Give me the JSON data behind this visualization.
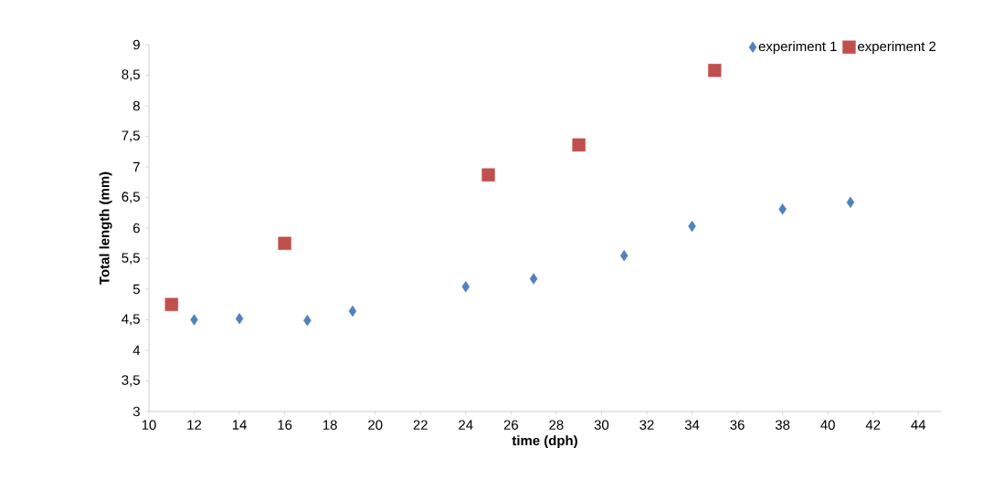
{
  "chart_data": {
    "type": "scatter",
    "xlabel": "time (dph)",
    "ylabel": "Total length (mm)",
    "xlim": [
      10,
      45
    ],
    "xticks": [
      10,
      12,
      14,
      16,
      18,
      20,
      22,
      24,
      26,
      28,
      30,
      32,
      34,
      36,
      38,
      40,
      42,
      44
    ],
    "ylim": [
      3,
      9
    ],
    "yticks": [
      3,
      {
        "value": 3.5,
        "label": "3,5"
      },
      4,
      {
        "value": 4.5,
        "label": "4,5"
      },
      5,
      {
        "value": 5.5,
        "label": "5,5"
      },
      6,
      {
        "value": 6.5,
        "label": "6,5"
      },
      7,
      {
        "value": 7.5,
        "label": "7,5"
      },
      8,
      {
        "value": 8.5,
        "label": "8,5"
      },
      9
    ],
    "legend": "top right",
    "grid": false,
    "series": [
      {
        "name": "experiment 1",
        "color": "#4f81bd",
        "marker": "diamond",
        "x": [
          12,
          14,
          17,
          19,
          24,
          27,
          31,
          34,
          38,
          41
        ],
        "values": [
          4.5,
          4.52,
          4.49,
          4.64,
          5.04,
          5.17,
          5.55,
          6.03,
          6.31,
          6.42
        ]
      },
      {
        "name": "experiment 2",
        "color": "#c0504d",
        "marker": "square",
        "x": [
          11,
          16,
          25,
          29,
          35
        ],
        "values": [
          4.75,
          5.75,
          6.87,
          7.36,
          8.58
        ]
      }
    ]
  }
}
